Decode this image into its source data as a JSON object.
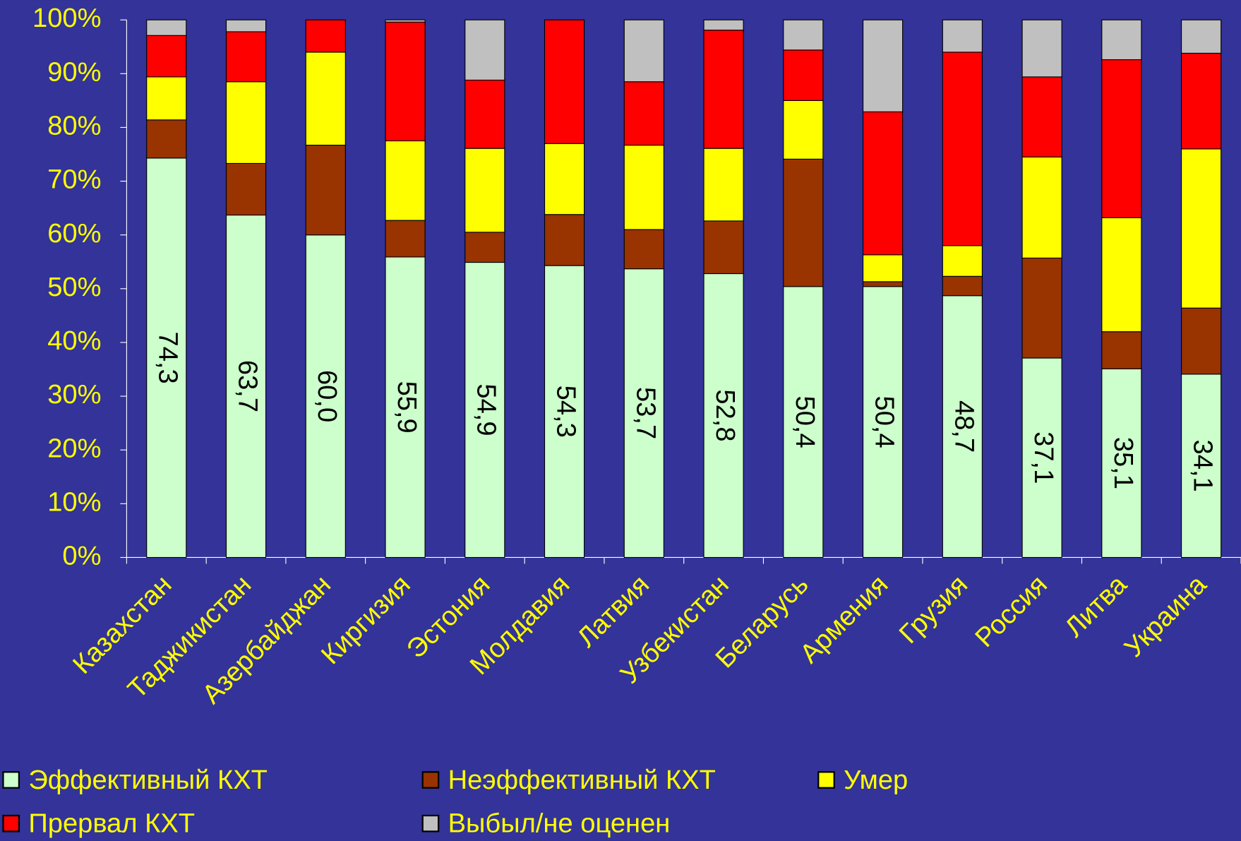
{
  "chart_data": {
    "type": "bar",
    "stacked": true,
    "categories": [
      "Казахстан",
      "Таджикистан",
      "Азербайджан",
      "Киргизия",
      "Эстония",
      "Молдавия",
      "Латвия",
      "Узбекистан",
      "Беларусь",
      "Армения",
      "Грузия",
      "Россия",
      "Литва",
      "Украина"
    ],
    "series": [
      {
        "name": "Эффективный КХТ",
        "color": "#ccffcc",
        "values": [
          74.3,
          63.7,
          60.0,
          55.9,
          54.9,
          54.3,
          53.7,
          52.8,
          50.4,
          50.4,
          48.7,
          37.1,
          35.1,
          34.1
        ],
        "value_labels": [
          "74,3",
          "63,7",
          "60,0",
          "55,9",
          "54,9",
          "54,3",
          "53,7",
          "52,8",
          "50,4",
          "50,4",
          "48,7",
          "37,1",
          "35,1",
          "34,1"
        ]
      },
      {
        "name": "Неэффективный КХТ",
        "color": "#993300",
        "values": [
          7.1,
          9.6,
          16.7,
          6.8,
          5.6,
          9.5,
          7.3,
          9.8,
          23.7,
          0.9,
          3.6,
          18.6,
          6.9,
          12.3
        ]
      },
      {
        "name": "Умер",
        "color": "#ffff00",
        "values": [
          8.0,
          15.2,
          17.3,
          14.8,
          15.6,
          13.2,
          15.7,
          13.5,
          10.9,
          5.0,
          5.7,
          18.8,
          21.2,
          29.6
        ]
      },
      {
        "name": "Прервал КХТ",
        "color": "#ff0000",
        "values": [
          7.7,
          9.3,
          6.0,
          22.1,
          12.7,
          23.0,
          11.8,
          22.0,
          9.4,
          26.6,
          36.0,
          14.9,
          29.4,
          17.8
        ]
      },
      {
        "name": "Выбыл/не оценен",
        "color": "#c0c0c0",
        "values": [
          2.9,
          2.2,
          0,
          0.4,
          11.2,
          0,
          11.5,
          1.9,
          5.6,
          17.1,
          6.0,
          10.6,
          7.4,
          6.2
        ]
      }
    ],
    "ylim": [
      0,
      100
    ],
    "yticks": [
      {
        "value": 0,
        "label": "0%"
      },
      {
        "value": 10,
        "label": "10%"
      },
      {
        "value": 20,
        "label": "20%"
      },
      {
        "value": 30,
        "label": "30%"
      },
      {
        "value": 40,
        "label": "40%"
      },
      {
        "value": 50,
        "label": "50%"
      },
      {
        "value": 60,
        "label": "60%"
      },
      {
        "value": 70,
        "label": "70%"
      },
      {
        "value": 80,
        "label": "80%"
      },
      {
        "value": 90,
        "label": "90%"
      },
      {
        "value": 100,
        "label": "100%"
      }
    ],
    "grid": false,
    "legend": "bottom"
  }
}
